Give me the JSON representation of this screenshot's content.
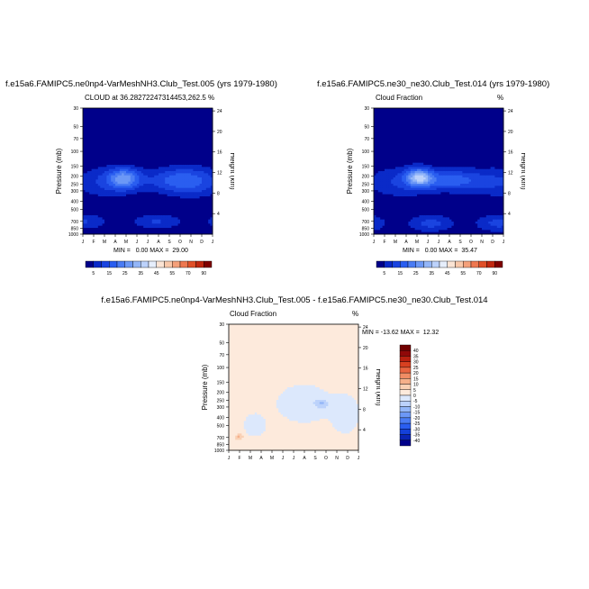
{
  "months": [
    "J",
    "F",
    "M",
    "A",
    "M",
    "J",
    "J",
    "A",
    "S",
    "O",
    "N",
    "D",
    "J"
  ],
  "pressure_ticks": [
    "30",
    "50",
    "70",
    "100",
    "150",
    "200",
    "250",
    "300",
    "400",
    "500",
    "700",
    "850",
    "1000"
  ],
  "height_ticks": [
    "24",
    "20",
    "16",
    "12",
    "8",
    "4"
  ],
  "left_axis_label": "Pressure (mb)",
  "right_axis_label": "Height (km)",
  "panels": [
    {
      "title": "f.e15a6.FAMIPC5.ne0np4-VarMeshNH3.Club_Test.005 (yrs 1979-1980)",
      "subtitle_left": "CLOUD at 36.28272247314453,262.5",
      "subtitle_right": "%",
      "stats": "MIN =   0.00 MAX =  29.00",
      "colorbar_labels": [
        "5",
        "15",
        "25",
        "35",
        "45",
        "55",
        "70",
        "90"
      ]
    },
    {
      "title": "f.e15a6.FAMIPC5.ne30_ne30.Club_Test.014 (yrs 1979-1980)",
      "subtitle_left": "Cloud Fraction",
      "subtitle_right": "%",
      "stats": "MIN =   0.00 MAX =  35.47",
      "colorbar_labels": [
        "5",
        "15",
        "25",
        "35",
        "45",
        "55",
        "70",
        "90"
      ]
    },
    {
      "title": "f.e15a6.FAMIPC5.ne0np4-VarMeshNH3.Club_Test.005 - f.e15a6.FAMIPC5.ne30_ne30.Club_Test.014",
      "subtitle_left": "Cloud Fraction",
      "subtitle_right": "%",
      "stats": "MIN = -13.62 MAX =  12.32",
      "colorbar_labels": [
        "40",
        "35",
        "30",
        "25",
        "20",
        "15",
        "10",
        "5",
        "0",
        "-5",
        "-10",
        "-15",
        "-20",
        "-25",
        "-30",
        "-35",
        "-40"
      ]
    }
  ],
  "chart_data": [
    {
      "type": "heatmap",
      "title": "f.e15a6.FAMIPC5.ne0np4-VarMeshNH3.Club_Test.005 (yrs 1979-1980)",
      "subtitle": "CLOUD at 36.28272247314453,262.5",
      "xlabel": "",
      "ylabel": "Pressure (mb)",
      "y2label": "Height (km)",
      "x": [
        "J",
        "F",
        "M",
        "A",
        "M",
        "J",
        "J",
        "A",
        "S",
        "O",
        "N",
        "D",
        "J"
      ],
      "y": [
        30,
        50,
        70,
        100,
        150,
        200,
        250,
        300,
        400,
        500,
        700,
        850,
        1000
      ],
      "levels": [
        5,
        10,
        15,
        20,
        25,
        30,
        35,
        40,
        45,
        50,
        55,
        60,
        70,
        80,
        90
      ],
      "min": 0.0,
      "max": 29.0,
      "colors": [
        "#00008a",
        "#0a2ac8",
        "#1a44e0",
        "#2a5ef0",
        "#4a7cf4",
        "#6c98f6",
        "#93b6f8",
        "#bcd2fb",
        "#e6eefc",
        "#fbe4d4",
        "#f8c8aa",
        "#f4a07a",
        "#ee7850",
        "#e05028",
        "#c02810",
        "#800000"
      ]
    },
    {
      "type": "heatmap",
      "title": "f.e15a6.FAMIPC5.ne30_ne30.Club_Test.014 (yrs 1979-1980)",
      "subtitle": "Cloud Fraction",
      "xlabel": "",
      "ylabel": "Pressure (mb)",
      "y2label": "Height (km)",
      "x": [
        "J",
        "F",
        "M",
        "A",
        "M",
        "J",
        "J",
        "A",
        "S",
        "O",
        "N",
        "D",
        "J"
      ],
      "y": [
        30,
        50,
        70,
        100,
        150,
        200,
        250,
        300,
        400,
        500,
        700,
        850,
        1000
      ],
      "levels": [
        5,
        10,
        15,
        20,
        25,
        30,
        35,
        40,
        45,
        50,
        55,
        60,
        70,
        80,
        90
      ],
      "min": 0.0,
      "max": 35.47,
      "colors": [
        "#00008a",
        "#0a2ac8",
        "#1a44e0",
        "#2a5ef0",
        "#4a7cf4",
        "#6c98f6",
        "#93b6f8",
        "#bcd2fb",
        "#e6eefc",
        "#fbe4d4",
        "#f8c8aa",
        "#f4a07a",
        "#ee7850",
        "#e05028",
        "#c02810",
        "#800000"
      ]
    },
    {
      "type": "heatmap",
      "title": "f.e15a6.FAMIPC5.ne0np4-VarMeshNH3.Club_Test.005 - f.e15a6.FAMIPC5.ne30_ne30.Club_Test.014",
      "subtitle": "Cloud Fraction",
      "xlabel": "",
      "ylabel": "Pressure (mb)",
      "y2label": "Height (km)",
      "x": [
        "J",
        "F",
        "M",
        "A",
        "M",
        "J",
        "J",
        "A",
        "S",
        "O",
        "N",
        "D",
        "J"
      ],
      "y": [
        30,
        50,
        70,
        100,
        150,
        200,
        250,
        300,
        400,
        500,
        700,
        850,
        1000
      ],
      "levels": [
        -40,
        -35,
        -30,
        -25,
        -20,
        -15,
        -10,
        -5,
        0,
        5,
        10,
        15,
        20,
        25,
        30,
        35,
        40
      ],
      "min": -13.62,
      "max": 12.32,
      "colors": [
        "#00008a",
        "#0a24b4",
        "#1440d8",
        "#2a5ef0",
        "#4a7cf4",
        "#6c98f6",
        "#93b6f8",
        "#bcd2fb",
        "#dce8fc",
        "#fdeadc",
        "#f9d0b4",
        "#f5b08a",
        "#f08c64",
        "#e86440",
        "#d84020",
        "#b82010",
        "#900808",
        "#700000"
      ]
    }
  ]
}
